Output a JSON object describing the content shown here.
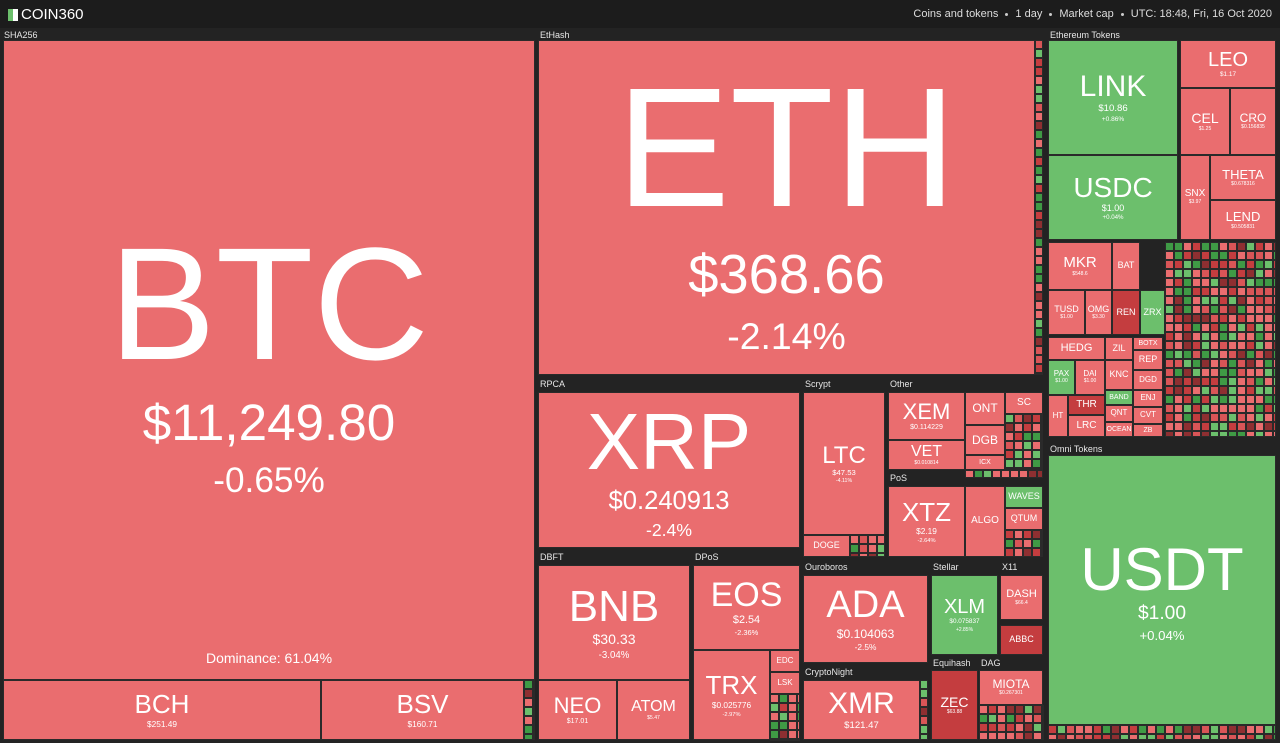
{
  "header": {
    "logo": "COIN360",
    "menu": [
      "Coins and tokens",
      "1 day",
      "Market cap",
      "UTC: 18:48, Fri, 16 Oct 2020"
    ]
  },
  "groups": [
    "SHA256",
    "EtHash",
    "Ethereum Tokens",
    "Omni Tokens",
    "RPCA",
    "Scrypt",
    "Other",
    "PoS",
    "DBFT",
    "DPoS",
    "Ouroboros",
    "Stellar",
    "X11",
    "CryptoNight",
    "Equihash",
    "DAG"
  ],
  "dominance": "Dominance: 61.04%",
  "tiles": [
    {
      "symbol": "BTC",
      "price": "$11,249.80",
      "change": "-0.65%",
      "color": "#ea6d6f"
    },
    {
      "symbol": "BCH",
      "price": "$251.49",
      "color": "#ea6d6f"
    },
    {
      "symbol": "BSV",
      "price": "$160.71",
      "color": "#ea6d6f"
    },
    {
      "symbol": "ETH",
      "price": "$368.66",
      "change": "-2.14%",
      "color": "#ea6d6f"
    },
    {
      "symbol": "XRP",
      "price": "$0.240913",
      "change": "-2.4%",
      "color": "#ea6d6f"
    },
    {
      "symbol": "LTC",
      "price": "$47.53",
      "change": "-4.11%",
      "color": "#ea6d6f"
    },
    {
      "symbol": "DOGE",
      "color": "#ea6d6f"
    },
    {
      "symbol": "XEM",
      "price": "$0.114229",
      "color": "#ea6d6f"
    },
    {
      "symbol": "VET",
      "price": "$0.010814",
      "color": "#ea6d6f"
    },
    {
      "symbol": "ONT",
      "color": "#ea6d6f"
    },
    {
      "symbol": "DGB",
      "color": "#ea6d6f"
    },
    {
      "symbol": "ICX",
      "color": "#ea6d6f"
    },
    {
      "symbol": "SC",
      "color": "#ea6d6f"
    },
    {
      "symbol": "XTZ",
      "price": "$2.19",
      "change": "-2.64%",
      "color": "#ea6d6f"
    },
    {
      "symbol": "ALGO",
      "color": "#ea6d6f"
    },
    {
      "symbol": "WAVES",
      "color": "#6cbf6c"
    },
    {
      "symbol": "QTUM",
      "color": "#ea6d6f"
    },
    {
      "symbol": "BNB",
      "price": "$30.33",
      "change": "-3.04%",
      "color": "#ea6d6f"
    },
    {
      "symbol": "NEO",
      "price": "$17.01",
      "color": "#ea6d6f"
    },
    {
      "symbol": "ATOM",
      "price": "$5.47",
      "color": "#ea6d6f"
    },
    {
      "symbol": "EOS",
      "price": "$2.54",
      "change": "-2.36%",
      "color": "#ea6d6f"
    },
    {
      "symbol": "TRX",
      "price": "$0.025776",
      "change": "-2.97%",
      "color": "#ea6d6f"
    },
    {
      "symbol": "EDC",
      "color": "#ea6d6f"
    },
    {
      "symbol": "LSK",
      "color": "#ea6d6f"
    },
    {
      "symbol": "ADA",
      "price": "$0.104063",
      "change": "-2.5%",
      "color": "#ea6d6f"
    },
    {
      "symbol": "XMR",
      "price": "$121.47",
      "color": "#ea6d6f"
    },
    {
      "symbol": "XLM",
      "price": "$0.075837",
      "change": "+2.85%",
      "color": "#6cbf6c"
    },
    {
      "symbol": "DASH",
      "price": "$66.4",
      "color": "#ea6d6f"
    },
    {
      "symbol": "ABBC",
      "color": "#c43d3f"
    },
    {
      "symbol": "ZEC",
      "price": "$63.88",
      "color": "#c43d3f"
    },
    {
      "symbol": "MIOTA",
      "price": "$0.267301",
      "color": "#ea6d6f"
    },
    {
      "symbol": "LINK",
      "price": "$10.86",
      "change": "+0.86%",
      "color": "#6cbf6c"
    },
    {
      "symbol": "USDC",
      "price": "$1.00",
      "change": "+0.04%",
      "color": "#6cbf6c"
    },
    {
      "symbol": "LEO",
      "price": "$1.17",
      "color": "#ea6d6f"
    },
    {
      "symbol": "CEL",
      "price": "$1.25",
      "color": "#ea6d6f"
    },
    {
      "symbol": "CRO",
      "price": "$0.156835",
      "color": "#ea6d6f"
    },
    {
      "symbol": "SNX",
      "price": "$3.97",
      "color": "#ea6d6f"
    },
    {
      "symbol": "THETA",
      "price": "$0.678316",
      "color": "#ea6d6f"
    },
    {
      "symbol": "LEND",
      "price": "$0.505831",
      "color": "#ea6d6f"
    },
    {
      "symbol": "MKR",
      "price": "$548.6",
      "color": "#ea6d6f"
    },
    {
      "symbol": "BAT",
      "color": "#ea6d6f"
    },
    {
      "symbol": "TUSD",
      "price": "$1.00",
      "color": "#ea6d6f"
    },
    {
      "symbol": "OMG",
      "price": "$3.30",
      "color": "#ea6d6f"
    },
    {
      "symbol": "REN",
      "color": "#c43d3f"
    },
    {
      "symbol": "ZRX",
      "color": "#6cbf6c"
    },
    {
      "symbol": "HEDG",
      "color": "#ea6d6f"
    },
    {
      "symbol": "ZIL",
      "color": "#ea6d6f"
    },
    {
      "symbol": "PAX",
      "price": "$1.00",
      "color": "#6cbf6c"
    },
    {
      "symbol": "DAI",
      "price": "$1.00",
      "color": "#ea6d6f"
    },
    {
      "symbol": "KNC",
      "color": "#ea6d6f"
    },
    {
      "symbol": "HT",
      "color": "#ea6d6f"
    },
    {
      "symbol": "THR",
      "color": "#c43d3f"
    },
    {
      "symbol": "LRC",
      "color": "#ea6d6f"
    },
    {
      "symbol": "BAND",
      "color": "#6cbf6c"
    },
    {
      "symbol": "QNT",
      "color": "#ea6d6f"
    },
    {
      "symbol": "OCEAN",
      "color": "#ea6d6f"
    },
    {
      "symbol": "BOTX",
      "color": "#ea6d6f"
    },
    {
      "symbol": "REP",
      "color": "#ea6d6f"
    },
    {
      "symbol": "DGD",
      "color": "#ea6d6f"
    },
    {
      "symbol": "ENJ",
      "color": "#ea6d6f"
    },
    {
      "symbol": "CVT",
      "color": "#ea6d6f"
    },
    {
      "symbol": "ZB",
      "color": "#ea6d6f"
    },
    {
      "symbol": "USDT",
      "price": "$1.00",
      "change": "+0.04%",
      "color": "#6cbf6c"
    }
  ]
}
